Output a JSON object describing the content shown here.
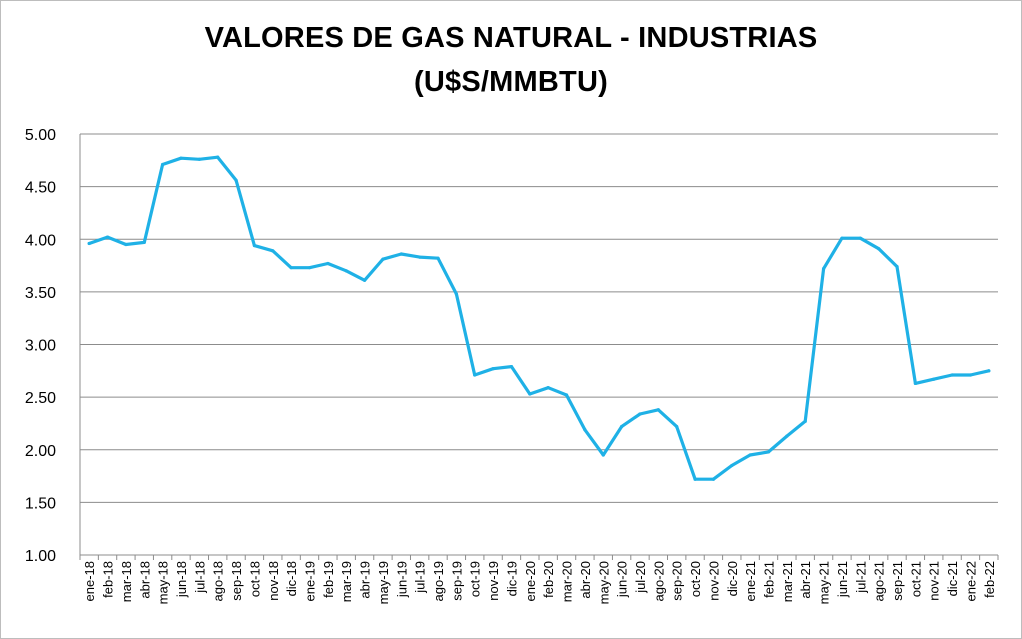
{
  "chart_data": {
    "type": "line",
    "title": "VALORES DE GAS NATURAL - INDUSTRIAS",
    "subtitle": "(U$S/MMBTU)",
    "xlabel": "",
    "ylabel": "",
    "ylim": [
      1.0,
      5.0
    ],
    "yticks": [
      "1.00",
      "1.50",
      "2.00",
      "2.50",
      "3.00",
      "3.50",
      "4.00",
      "4.50",
      "5.00"
    ],
    "grid": true,
    "legend": "none",
    "line_color": "#1fb1e6",
    "categories": [
      "ene-18",
      "feb-18",
      "mar-18",
      "abr-18",
      "may-18",
      "jun-18",
      "jul-18",
      "ago-18",
      "sep-18",
      "oct-18",
      "nov-18",
      "dic-18",
      "ene-19",
      "feb-19",
      "mar-19",
      "abr-19",
      "may-19",
      "jun-19",
      "jul-19",
      "ago-19",
      "sep-19",
      "oct-19",
      "nov-19",
      "dic-19",
      "ene-20",
      "feb-20",
      "mar-20",
      "abr-20",
      "may-20",
      "jun-20",
      "jul-20",
      "ago-20",
      "sep-20",
      "oct-20",
      "nov-20",
      "dic-20",
      "ene-21",
      "feb-21",
      "mar-21",
      "abr-21",
      "may-21",
      "jun-21",
      "jul-21",
      "ago-21",
      "sep-21",
      "oct-21",
      "nov-21",
      "dic-21",
      "ene-22",
      "feb-22"
    ],
    "series": [
      {
        "values": [
          3.96,
          4.02,
          3.95,
          3.97,
          4.71,
          4.77,
          4.76,
          4.78,
          4.56,
          3.94,
          3.89,
          3.73,
          3.73,
          3.77,
          3.7,
          3.61,
          3.81,
          3.86,
          3.83,
          3.82,
          3.48,
          2.71,
          2.77,
          2.79,
          2.53,
          2.59,
          2.52,
          2.19,
          1.95,
          2.22,
          2.34,
          2.38,
          2.22,
          1.72,
          1.72,
          1.85,
          1.95,
          1.98,
          2.13,
          2.27,
          3.72,
          4.01,
          4.01,
          3.91,
          3.74,
          2.63,
          2.67,
          2.71,
          2.71,
          2.75
        ]
      }
    ]
  }
}
